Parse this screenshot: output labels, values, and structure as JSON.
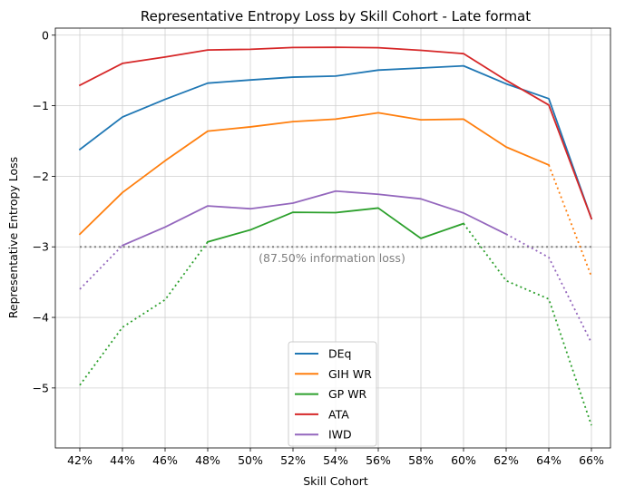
{
  "chart_data": {
    "type": "line",
    "title": "Representative Entropy Loss by Skill Cohort - Late format",
    "xlabel": "Skill Cohort",
    "ylabel": "Representative Entropy Loss",
    "categories": [
      "42%",
      "44%",
      "46%",
      "48%",
      "50%",
      "52%",
      "54%",
      "56%",
      "58%",
      "60%",
      "62%",
      "64%",
      "66%"
    ],
    "ylim": [
      -5.85,
      0.1
    ],
    "yticks": [
      0,
      -1,
      -2,
      -3,
      -4,
      -5
    ],
    "ytick_labels": [
      "0",
      "−1",
      "−2",
      "−3",
      "−4",
      "−5"
    ],
    "grid": true,
    "legend_position": "lower-center",
    "reference_line": {
      "value": -3,
      "label": "(87.50% information loss)",
      "color": "#808080",
      "style": "dotted"
    },
    "series": [
      {
        "name": "DEq",
        "color": "#1f77b4",
        "values": [
          -1.62,
          -1.16,
          -0.91,
          -0.68,
          -0.635,
          -0.595,
          -0.58,
          -0.495,
          -0.465,
          -0.435,
          -0.69,
          -0.9,
          -2.6
        ]
      },
      {
        "name": "GIH WR",
        "color": "#ff7f0e",
        "values": [
          -2.82,
          -2.23,
          -1.78,
          -1.36,
          -1.3,
          -1.225,
          -1.19,
          -1.1,
          -1.2,
          -1.19,
          -1.585,
          -1.84,
          -3.42
        ]
      },
      {
        "name": "GP WR",
        "color": "#2ca02c",
        "values": [
          -4.96,
          -4.14,
          -3.75,
          -2.93,
          -2.76,
          -2.51,
          -2.515,
          -2.45,
          -2.88,
          -2.67,
          -3.48,
          -3.74,
          -5.53
        ]
      },
      {
        "name": "ATA",
        "color": "#d62728",
        "values": [
          -0.71,
          -0.4,
          -0.31,
          -0.21,
          -0.2,
          -0.175,
          -0.172,
          -0.178,
          -0.215,
          -0.262,
          -0.64,
          -0.99,
          -2.6
        ]
      },
      {
        "name": "IWD",
        "color": "#9467bd",
        "values": [
          -3.6,
          -2.98,
          -2.72,
          -2.42,
          -2.46,
          -2.38,
          -2.21,
          -2.255,
          -2.32,
          -2.52,
          -2.82,
          -3.15,
          -4.36
        ]
      }
    ]
  }
}
